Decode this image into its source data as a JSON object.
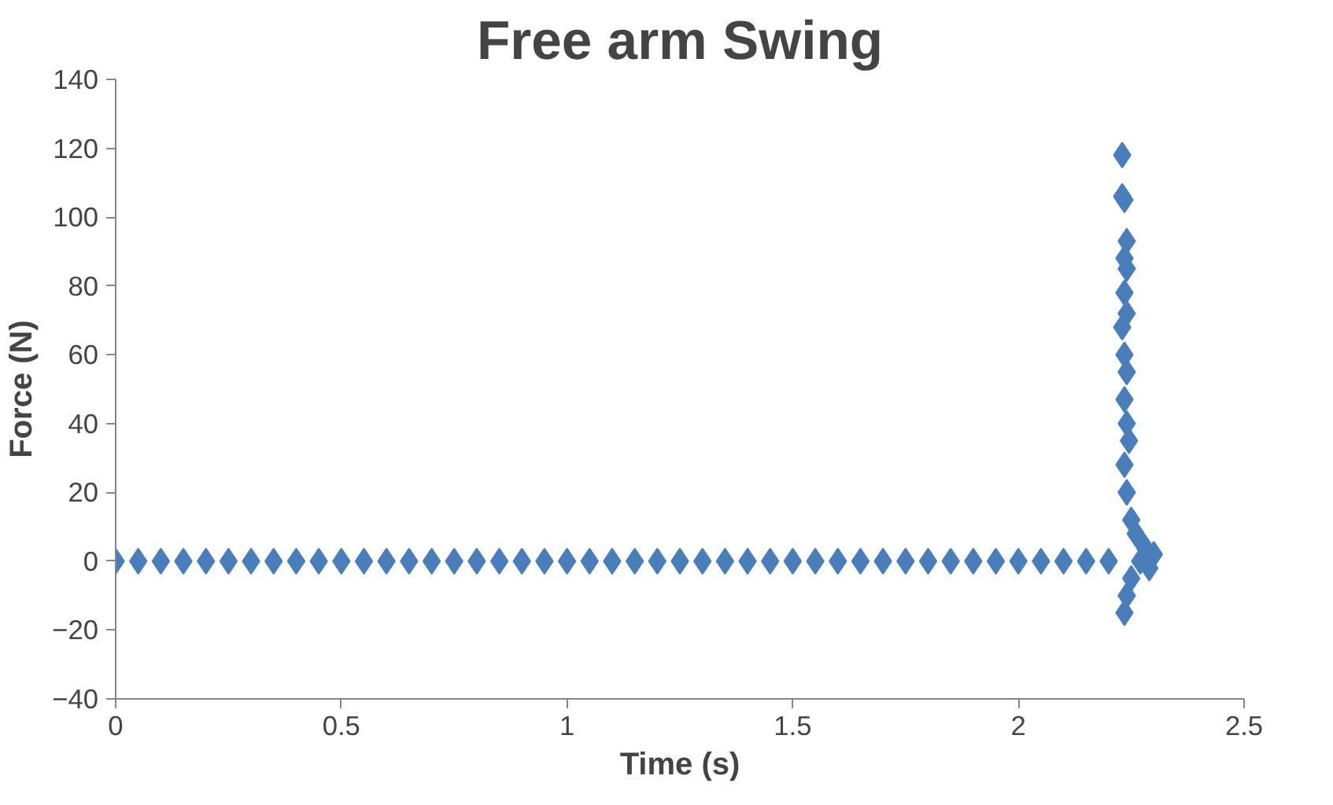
{
  "chart_data": {
    "type": "scatter",
    "title": "Free arm Swing",
    "xlabel": "Time (s)",
    "ylabel": "Force (N)",
    "xlim": [
      0,
      2.5
    ],
    "xticks": [
      0,
      0.5,
      1,
      1.5,
      2,
      2.5
    ],
    "ylim": [
      -40,
      140
    ],
    "yticks": [
      -40,
      -20,
      0,
      20,
      40,
      60,
      80,
      100,
      120,
      140
    ],
    "grid": false,
    "marker": "diamond",
    "series": [
      {
        "color": "#4a7ebb",
        "x": [
          0,
          0.05,
          0.1,
          0.15,
          0.2,
          0.25,
          0.3,
          0.35,
          0.4,
          0.45,
          0.5,
          0.55,
          0.6,
          0.65,
          0.7,
          0.75,
          0.8,
          0.85,
          0.9,
          0.95,
          1,
          1.05,
          1.1,
          1.15,
          1.2,
          1.25,
          1.3,
          1.35,
          1.4,
          1.45,
          1.5,
          1.55,
          1.6,
          1.65,
          1.7,
          1.75,
          1.8,
          1.85,
          1.9,
          1.95,
          2,
          2.05,
          2.1,
          2.15,
          2.2,
          2.23,
          2.23,
          2.235,
          2.24,
          2.235,
          2.24,
          2.235,
          2.24,
          2.23,
          2.235,
          2.24,
          2.235,
          2.24,
          2.245,
          2.235,
          2.24,
          2.25,
          2.26,
          2.28,
          2.3,
          2.29,
          2.25,
          2.24,
          2.235,
          2.27
        ],
        "values": [
          0,
          0,
          0,
          0,
          0,
          0,
          0,
          0,
          0,
          0,
          0,
          0,
          0,
          0,
          0,
          0,
          0,
          0,
          0,
          0,
          0,
          0,
          0,
          0,
          0,
          0,
          0,
          0,
          0,
          0,
          0,
          0,
          0,
          0,
          0,
          0,
          0,
          0,
          0,
          0,
          0,
          0,
          0,
          0,
          0,
          118,
          106,
          105,
          93,
          88,
          85,
          78,
          72,
          68,
          60,
          55,
          47,
          40,
          35,
          28,
          20,
          12,
          8,
          4,
          2,
          -2,
          -5,
          -10,
          -15,
          0
        ]
      }
    ]
  }
}
